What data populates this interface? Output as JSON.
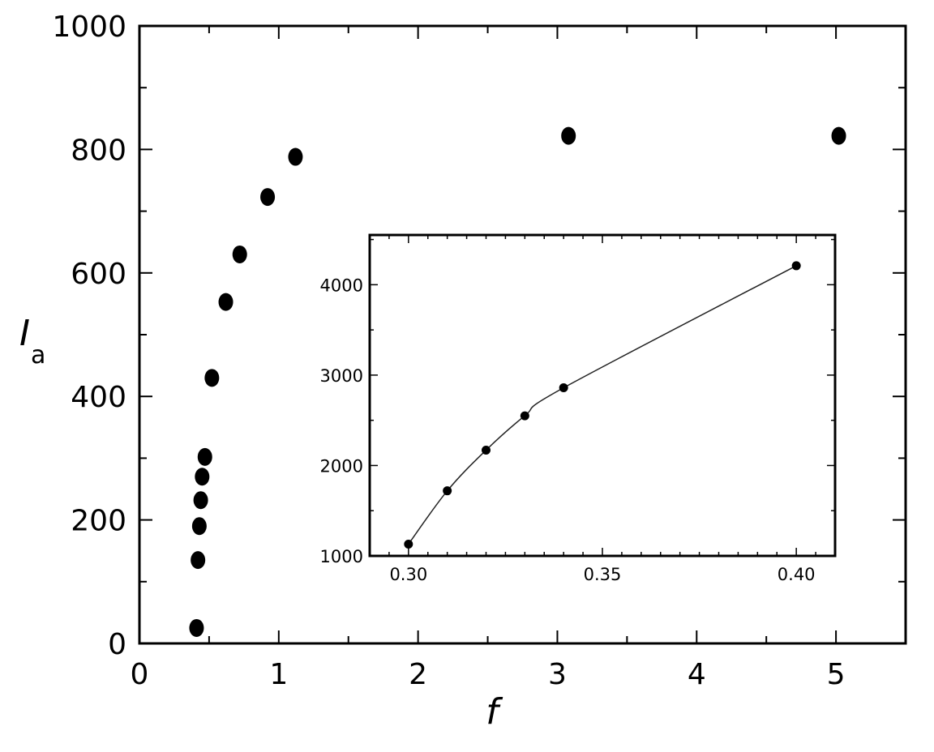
{
  "chart_data": [
    {
      "type": "scatter",
      "xlabel": "f",
      "ylabel": "I",
      "ylabel_subscript": "a",
      "xlim": [
        0,
        5.5
      ],
      "ylim": [
        0,
        1000
      ],
      "x_ticks": [
        0,
        1,
        2,
        3,
        4,
        5
      ],
      "x_tick_labels": [
        "0",
        "1",
        "2",
        "3",
        "4",
        "5"
      ],
      "y_ticks": [
        0,
        200,
        400,
        600,
        800,
        1000
      ],
      "y_tick_labels": [
        "0",
        "200",
        "400",
        "600",
        "800",
        "1000"
      ],
      "marker_color": "#000000",
      "series": [
        {
          "x": [
            0.41,
            0.42,
            0.43,
            0.44,
            0.45,
            0.47,
            0.52,
            0.62,
            0.72,
            0.92,
            1.12,
            3.08,
            5.02
          ],
          "y": [
            25,
            135,
            190,
            232,
            270,
            302,
            430,
            553,
            630,
            723,
            788,
            822,
            822
          ]
        }
      ]
    },
    {
      "type": "line",
      "xlim": [
        0.29,
        0.41
      ],
      "ylim": [
        1000,
        4550
      ],
      "x_ticks": [
        0.3,
        0.35,
        0.4
      ],
      "x_tick_labels": [
        "0.30",
        "0.35",
        "0.40"
      ],
      "y_ticks": [
        1000,
        2000,
        3000,
        4000
      ],
      "y_tick_labels": [
        "1000",
        "2000",
        "3000",
        "4000"
      ],
      "marker_color": "#000000",
      "line_color": "#222222",
      "series": [
        {
          "x": [
            0.3,
            0.31,
            0.32,
            0.33,
            0.34,
            0.4
          ],
          "y": [
            1130,
            1720,
            2170,
            2550,
            2860,
            4210
          ]
        }
      ]
    }
  ]
}
